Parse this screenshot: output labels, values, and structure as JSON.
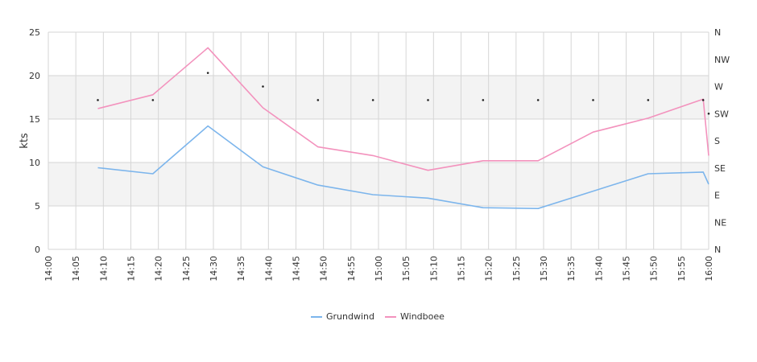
{
  "chart_data": {
    "type": "line",
    "title": "",
    "xlabel": "",
    "ylabel": "kts",
    "ylim": [
      0,
      25
    ],
    "y_ticks": [
      "0",
      "5",
      "10",
      "15",
      "20",
      "25"
    ],
    "x_ticks": [
      "14:00",
      "14:05",
      "14:10",
      "14:15",
      "14:20",
      "14:25",
      "14:30",
      "14:35",
      "14:40",
      "14:45",
      "14:50",
      "14:55",
      "15:00",
      "15:05",
      "15:10",
      "15:15",
      "15:20",
      "15:25",
      "15:30",
      "15:35",
      "15:40",
      "15:45",
      "15:50",
      "15:55",
      "16:00"
    ],
    "direction_ticks": [
      "N",
      "NW",
      "W",
      "SW",
      "S",
      "SE",
      "E",
      "NE",
      "N"
    ],
    "grid": true,
    "legend_position": "bottom",
    "series": [
      {
        "name": "Grundwind",
        "color": "#7cb5ec",
        "x": [
          "14:09",
          "14:19",
          "14:29",
          "14:39",
          "14:49",
          "14:59",
          "15:09",
          "15:19",
          "15:29",
          "15:39",
          "15:49",
          "15:59",
          "16:00"
        ],
        "values": [
          9.4,
          8.7,
          14.2,
          9.5,
          7.4,
          6.3,
          5.9,
          4.8,
          4.7,
          6.7,
          8.7,
          8.9,
          7.5
        ]
      },
      {
        "name": "Windboee",
        "color": "#f392bd",
        "x": [
          "14:09",
          "14:19",
          "14:29",
          "14:39",
          "14:49",
          "14:59",
          "15:09",
          "15:19",
          "15:29",
          "15:39",
          "15:49",
          "15:59",
          "16:00"
        ],
        "values": [
          16.2,
          17.8,
          23.2,
          16.3,
          11.8,
          10.8,
          9.1,
          10.2,
          10.2,
          13.5,
          15.1,
          17.3,
          10.8
        ]
      }
    ],
    "direction_points": {
      "x": [
        "14:09",
        "14:19",
        "14:29",
        "14:39",
        "14:49",
        "14:59",
        "15:09",
        "15:19",
        "15:29",
        "15:39",
        "15:49",
        "15:59",
        "16:00"
      ],
      "values": [
        "WSW",
        "WSW",
        "WNW",
        "W",
        "WSW",
        "WSW",
        "WSW",
        "WSW",
        "WSW",
        "WSW",
        "WSW",
        "WSW",
        "SW"
      ]
    }
  }
}
